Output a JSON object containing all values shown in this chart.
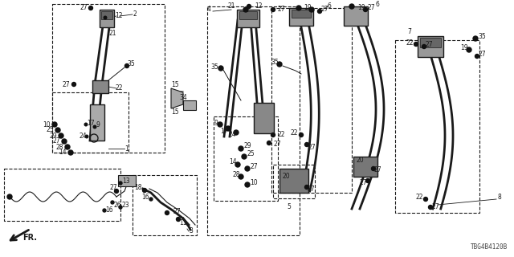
{
  "part_number": "TBG4B4120B",
  "background_color": "#ffffff",
  "line_color": "#1a1a1a",
  "label_color": "#1a1a1a",
  "fig_width": 6.4,
  "fig_height": 3.2,
  "dpi": 100
}
